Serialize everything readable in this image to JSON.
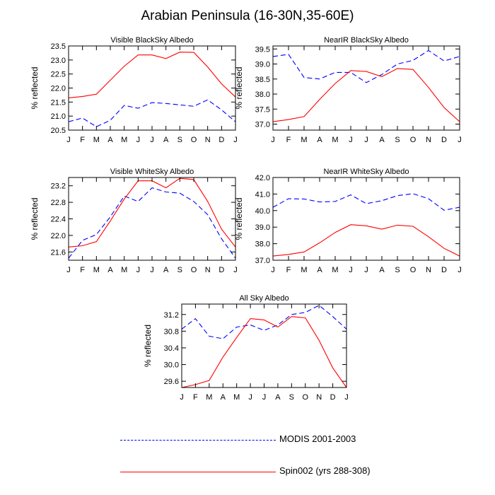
{
  "title": "Arabian Peninsula (16-30N,35-60E)",
  "colors": {
    "modis": "#0000ff",
    "model": "#ff0000"
  },
  "legend": [
    {
      "label": "MODIS 2001-2003",
      "style": "dashed",
      "color": "#0000ff"
    },
    {
      "label": "Spin002 (yrs 288-308)",
      "style": "solid",
      "color": "#ff0000"
    }
  ],
  "chart_data": [
    {
      "type": "line",
      "title": "Visible BlackSky Albedo",
      "xlabel": "",
      "ylabel": "% reflected",
      "categories": [
        "J",
        "F",
        "M",
        "A",
        "M",
        "J",
        "J",
        "A",
        "S",
        "O",
        "N",
        "D",
        "J"
      ],
      "ylim": [
        20.5,
        23.5
      ],
      "yticks": [
        20.5,
        21.0,
        21.5,
        22.0,
        22.5,
        23.0,
        23.5
      ],
      "tick_decimals": 1,
      "series": [
        {
          "name": "MODIS 2001-2003",
          "values": [
            20.8,
            20.93,
            20.62,
            20.85,
            21.38,
            21.28,
            21.48,
            21.45,
            21.4,
            21.35,
            21.58,
            21.22,
            20.8
          ]
        },
        {
          "name": "Spin002 (yrs 288-308)",
          "values": [
            21.65,
            21.7,
            21.78,
            22.28,
            22.78,
            23.18,
            23.18,
            23.05,
            23.28,
            23.27,
            22.75,
            22.15,
            21.68
          ]
        }
      ]
    },
    {
      "type": "line",
      "title": "NearIR BlackSky Albedo",
      "xlabel": "",
      "ylabel": "% reflected",
      "categories": [
        "J",
        "F",
        "M",
        "A",
        "M",
        "J",
        "J",
        "A",
        "S",
        "O",
        "N",
        "D",
        "J"
      ],
      "ylim": [
        36.8,
        39.6
      ],
      "yticks": [
        37.0,
        37.5,
        38.0,
        38.5,
        39.0,
        39.5
      ],
      "tick_decimals": 1,
      "series": [
        {
          "name": "MODIS 2001-2003",
          "values": [
            39.25,
            39.32,
            38.55,
            38.5,
            38.72,
            38.72,
            38.38,
            38.65,
            39.0,
            39.12,
            39.45,
            39.1,
            39.25
          ]
        },
        {
          "name": "Spin002 (yrs 288-308)",
          "values": [
            37.08,
            37.15,
            37.25,
            37.82,
            38.35,
            38.78,
            38.75,
            38.58,
            38.85,
            38.82,
            38.22,
            37.55,
            37.08
          ]
        }
      ]
    },
    {
      "type": "line",
      "title": "Visible WhiteSky Albedo",
      "xlabel": "",
      "ylabel": "% reflected",
      "categories": [
        "J",
        "F",
        "M",
        "A",
        "M",
        "J",
        "J",
        "A",
        "S",
        "O",
        "N",
        "D",
        "J"
      ],
      "ylim": [
        21.4,
        23.4
      ],
      "yticks": [
        21.6,
        22.0,
        22.4,
        22.8,
        23.2
      ],
      "tick_decimals": 1,
      "series": [
        {
          "name": "MODIS 2001-2003",
          "values": [
            21.45,
            21.88,
            22.02,
            22.45,
            22.95,
            22.82,
            23.15,
            23.05,
            23.02,
            22.82,
            22.5,
            21.92,
            21.45
          ]
        },
        {
          "name": "Spin002 (yrs 288-308)",
          "values": [
            21.72,
            21.75,
            21.85,
            22.35,
            22.88,
            23.32,
            23.32,
            23.15,
            23.38,
            23.35,
            22.82,
            22.15,
            21.72
          ]
        }
      ]
    },
    {
      "type": "line",
      "title": "NearIR WhiteSky Albedo",
      "xlabel": "",
      "ylabel": "% reflected",
      "categories": [
        "J",
        "F",
        "M",
        "A",
        "M",
        "J",
        "J",
        "A",
        "S",
        "O",
        "N",
        "D",
        "J"
      ],
      "ylim": [
        37.0,
        42.0
      ],
      "yticks": [
        37.0,
        38.0,
        39.0,
        40.0,
        41.0,
        42.0
      ],
      "tick_decimals": 1,
      "series": [
        {
          "name": "MODIS 2001-2003",
          "values": [
            40.2,
            40.72,
            40.7,
            40.52,
            40.55,
            40.95,
            40.42,
            40.6,
            40.9,
            41.02,
            40.72,
            40.02,
            40.2
          ]
        },
        {
          "name": "Spin002 (yrs 288-308)",
          "values": [
            37.25,
            37.35,
            37.5,
            38.05,
            38.68,
            39.15,
            39.08,
            38.88,
            39.12,
            39.05,
            38.42,
            37.72,
            37.25
          ]
        }
      ]
    },
    {
      "type": "line",
      "title": "All Sky Albedo",
      "xlabel": "",
      "ylabel": "% reflected",
      "categories": [
        "J",
        "F",
        "M",
        "A",
        "M",
        "J",
        "J",
        "A",
        "S",
        "O",
        "N",
        "D",
        "J"
      ],
      "ylim": [
        29.45,
        31.45
      ],
      "yticks": [
        29.6,
        30.0,
        30.4,
        30.8,
        31.2
      ],
      "tick_decimals": 1,
      "series": [
        {
          "name": "MODIS 2001-2003",
          "values": [
            30.85,
            31.1,
            30.68,
            30.62,
            30.9,
            30.95,
            30.82,
            30.95,
            31.2,
            31.25,
            31.42,
            31.15,
            30.85
          ]
        },
        {
          "name": "Spin002 (yrs 288-308)",
          "values": [
            29.45,
            29.52,
            29.62,
            30.18,
            30.65,
            31.1,
            31.07,
            30.9,
            31.15,
            31.12,
            30.58,
            29.92,
            29.45
          ]
        }
      ]
    }
  ]
}
